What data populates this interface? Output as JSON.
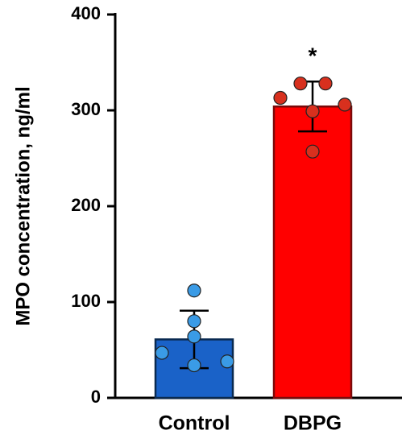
{
  "chart_data": {
    "type": "bar",
    "y_label": "MPO concentration, ng/ml",
    "categories": [
      "Control",
      "DBPG"
    ],
    "values": [
      61,
      304
    ],
    "errors": [
      30,
      26
    ],
    "colors": [
      "#1a62c8",
      "#ff0000"
    ],
    "point_colors": [
      "#3a9be6",
      "#d8301e"
    ],
    "points": [
      [
        112,
        80,
        64,
        47,
        38,
        34
      ],
      [
        328,
        328,
        313,
        306,
        299,
        257
      ]
    ],
    "annotations": [
      "",
      "*"
    ],
    "ylim": [
      0,
      400
    ],
    "yticks": [
      0,
      100,
      200,
      300,
      400
    ]
  }
}
